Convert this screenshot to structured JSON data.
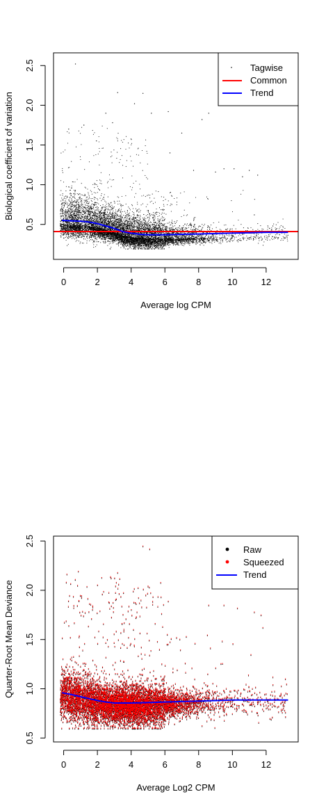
{
  "colors": {
    "tagwise": "#000000",
    "common": "#ff0000",
    "trend": "#0000ff",
    "raw": "#000000",
    "squeezed": "#ff0000"
  },
  "chart_data": [
    {
      "type": "scatter",
      "title": "",
      "xlabel": "Average log CPM",
      "ylabel": "Biological coefficient of variation",
      "xlim": [
        -0.6,
        13.9
      ],
      "ylim": [
        0.06,
        2.66
      ],
      "xticks": [
        0,
        2,
        4,
        6,
        8,
        10,
        12
      ],
      "yticks": [
        0.5,
        1.0,
        1.5,
        2.0,
        2.5
      ],
      "ytick_labels": [
        "0.5",
        "1.0",
        "1.5",
        "2.0",
        "2.5"
      ],
      "grid": false,
      "legend_position": "top-right",
      "legend": [
        {
          "label": "Tagwise",
          "kind": "point",
          "color": "#000000"
        },
        {
          "label": "Common",
          "kind": "line",
          "color": "#ff0000"
        },
        {
          "label": "Trend",
          "kind": "line",
          "color": "#0000ff"
        }
      ],
      "series": [
        {
          "name": "Tagwise",
          "kind": "scatter",
          "color": "#000000",
          "outliers": [
            [
              0.7,
              2.52
            ],
            [
              3.2,
              2.16
            ],
            [
              4.7,
              2.15
            ],
            [
              4.2,
              2.02
            ],
            [
              5.2,
              1.9
            ],
            [
              6.2,
              1.92
            ],
            [
              8.6,
              1.9
            ],
            [
              8.2,
              1.82
            ],
            [
              7.0,
              1.65
            ],
            [
              9.5,
              1.2
            ],
            [
              10.1,
              1.2
            ],
            [
              11.0,
              1.18
            ],
            [
              11.5,
              1.12
            ],
            [
              9.0,
              1.16
            ],
            [
              10.6,
              1.1
            ],
            [
              12.4,
              0.48
            ],
            [
              12.2,
              0.45
            ],
            [
              11.3,
              0.62
            ],
            [
              7.7,
              1.18
            ],
            [
              6.3,
              1.4
            ],
            [
              2.5,
              1.9
            ],
            [
              2.9,
              1.78
            ],
            [
              1.2,
              1.75
            ],
            [
              0.3,
              1.7
            ]
          ],
          "comment": "remaining ~thousands of points drawn procedurally from the density envelope"
        },
        {
          "name": "Common",
          "kind": "hline",
          "color": "#ff0000",
          "y": 0.41
        },
        {
          "name": "Trend",
          "kind": "line",
          "color": "#0000ff",
          "x": [
            -0.1,
            0.5,
            1.0,
            1.5,
            2.0,
            2.5,
            3.0,
            3.5,
            4.0,
            4.5,
            5.0,
            6.0,
            7.0,
            8.0,
            9.0,
            10.0,
            11.0,
            12.0,
            13.3
          ],
          "y": [
            0.55,
            0.545,
            0.54,
            0.53,
            0.51,
            0.48,
            0.45,
            0.41,
            0.39,
            0.375,
            0.37,
            0.37,
            0.375,
            0.38,
            0.385,
            0.39,
            0.395,
            0.4,
            0.4
          ]
        }
      ]
    },
    {
      "type": "scatter",
      "title": "",
      "xlabel": "Average Log2 CPM",
      "ylabel": "Quarter-Root Mean Deviance",
      "xlim": [
        -0.6,
        13.9
      ],
      "ylim": [
        0.46,
        2.55
      ],
      "xticks": [
        0,
        2,
        4,
        6,
        8,
        10,
        12
      ],
      "yticks": [
        0.5,
        1.0,
        1.5,
        2.0,
        2.5
      ],
      "ytick_labels": [
        "0.5",
        "1.0",
        "1.5",
        "2.0",
        "2.5"
      ],
      "grid": false,
      "legend_position": "top-right",
      "legend": [
        {
          "label": "Raw",
          "kind": "point",
          "color": "#000000"
        },
        {
          "label": "Squeezed",
          "kind": "point",
          "color": "#ff0000"
        },
        {
          "label": "Trend",
          "kind": "line",
          "color": "#0000ff"
        }
      ],
      "series": [
        {
          "name": "Raw",
          "kind": "scatter",
          "color": "#000000",
          "outliers": [
            [
              4.7,
              2.45
            ],
            [
              5.1,
              2.42
            ],
            [
              3.2,
              2.18
            ],
            [
              6.2,
              1.89
            ],
            [
              9.5,
              1.85
            ],
            [
              10.3,
              1.82
            ],
            [
              11.3,
              1.78
            ],
            [
              11.7,
              1.75
            ],
            [
              12.4,
              1.12
            ],
            [
              8.6,
              1.85
            ]
          ],
          "comment": "procedurally generated points"
        },
        {
          "name": "Squeezed",
          "kind": "scatter",
          "color": "#ff0000",
          "comment": "procedurally generated points overlaid on Raw"
        },
        {
          "name": "Trend",
          "kind": "line",
          "color": "#0000ff",
          "x": [
            -0.1,
            0.5,
            1.0,
            1.5,
            2.0,
            2.5,
            3.0,
            4.0,
            5.0,
            6.0,
            7.0,
            8.0,
            9.0,
            10.0,
            11.0,
            12.0,
            13.3
          ],
          "y": [
            0.96,
            0.94,
            0.92,
            0.9,
            0.88,
            0.865,
            0.855,
            0.855,
            0.86,
            0.865,
            0.87,
            0.875,
            0.88,
            0.885,
            0.885,
            0.885,
            0.885
          ]
        }
      ]
    }
  ]
}
